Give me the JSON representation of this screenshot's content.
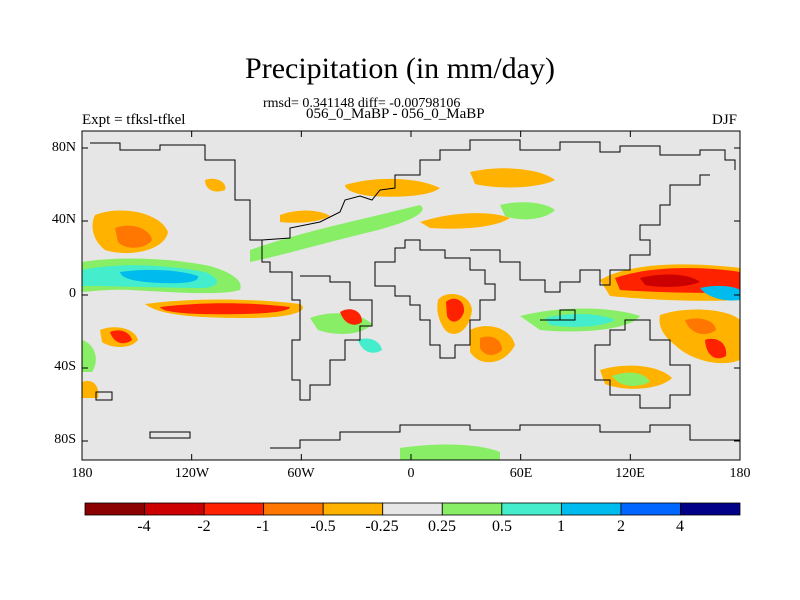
{
  "title": "Precipitation (in mm/day)",
  "stats": "rmsd= 0.341148 diff= -0.00798106",
  "subtitle": "056_0_MaBP - 056_0_MaBP",
  "experiment": "Expt = tfksl-tfkel",
  "season": "DJF",
  "map": {
    "background_color": "#e6e6e6",
    "lon_ticks": [
      "180",
      "120W",
      "60W",
      "0",
      "60E",
      "120E",
      "180"
    ],
    "lat_ticks": [
      "80N",
      "40N",
      "0",
      "40S",
      "80S"
    ]
  },
  "colorbar": {
    "colors": [
      "#8b0000",
      "#cc0000",
      "#ff2200",
      "#ff7700",
      "#ffb300",
      "#e6e6e6",
      "#88ee66",
      "#44eecc",
      "#00bbee",
      "#0066ff",
      "#000088"
    ],
    "labels": [
      "-4",
      "-2",
      "-1",
      "-0.5",
      "-0.25",
      "0.25",
      "0.5",
      "1",
      "2",
      "4"
    ]
  }
}
